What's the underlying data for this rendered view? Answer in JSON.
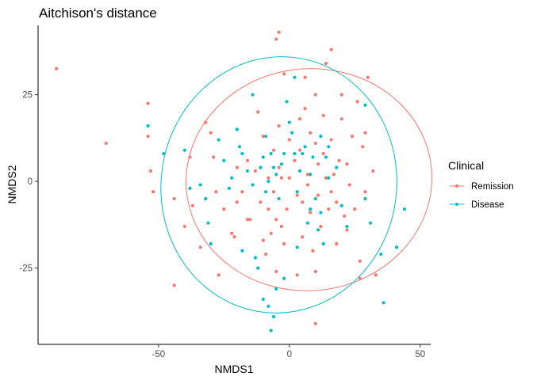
{
  "chart_data": {
    "type": "scatter",
    "title": "Aitchison's distance",
    "xlabel": "NMDS1",
    "ylabel": "NMDS2",
    "xlim": [
      -96,
      54
    ],
    "ylim": [
      -47,
      45
    ],
    "xticks": [
      -50,
      0,
      50
    ],
    "yticks": [
      -25,
      0,
      25
    ],
    "grid": false,
    "legend": {
      "title": "Clinical",
      "position": "right"
    },
    "series": [
      {
        "name": "Remission",
        "color": "#F8766D",
        "ellipse": {
          "center": [
            7.5,
            0.5
          ],
          "rx": 47,
          "ry": 32,
          "angle": 5
        },
        "points": [
          [
            -89,
            32.5
          ],
          [
            -70,
            11
          ],
          [
            -54,
            22.5
          ],
          [
            -54,
            13
          ],
          [
            -53,
            3
          ],
          [
            -52,
            -3
          ],
          [
            -44,
            -5
          ],
          [
            -44,
            -30
          ],
          [
            -40,
            -13
          ],
          [
            -38,
            7
          ],
          [
            -37,
            -7
          ],
          [
            -34,
            -19
          ],
          [
            -32,
            17
          ],
          [
            -30,
            14
          ],
          [
            -29,
            7
          ],
          [
            -28,
            -3
          ],
          [
            -27,
            -27
          ],
          [
            -25,
            -8
          ],
          [
            -22,
            -15
          ],
          [
            -21,
            -16
          ],
          [
            -20,
            -6
          ],
          [
            -18,
            -3
          ],
          [
            -16,
            6
          ],
          [
            -15,
            -11
          ],
          [
            -13,
            3
          ],
          [
            -12,
            20
          ],
          [
            -11,
            -6
          ],
          [
            -10,
            13
          ],
          [
            -10,
            -17
          ],
          [
            -9,
            -21
          ],
          [
            -8,
            1
          ],
          [
            -8,
            -8
          ],
          [
            -7,
            -15
          ],
          [
            -6,
            9
          ],
          [
            -6,
            -3
          ],
          [
            -5,
            -11
          ],
          [
            -5,
            -26
          ],
          [
            -4,
            16
          ],
          [
            -4,
            4
          ],
          [
            -3,
            1
          ],
          [
            -3,
            -13
          ],
          [
            -2,
            -18
          ],
          [
            -2,
            31
          ],
          [
            -1,
            -8
          ],
          [
            0,
            12
          ],
          [
            0,
            1
          ],
          [
            -4,
            43
          ],
          [
            -5,
            41
          ],
          [
            2,
            6
          ],
          [
            3,
            -4
          ],
          [
            3,
            -27
          ],
          [
            4,
            18
          ],
          [
            4,
            9
          ],
          [
            5,
            -6
          ],
          [
            5,
            -16
          ],
          [
            6,
            30
          ],
          [
            6,
            21
          ],
          [
            7,
            2
          ],
          [
            7,
            -1
          ],
          [
            8,
            14
          ],
          [
            8,
            -9
          ],
          [
            9,
            -20
          ],
          [
            10,
            25
          ],
          [
            10,
            11
          ],
          [
            11,
            5
          ],
          [
            11,
            -4
          ],
          [
            12,
            -13
          ],
          [
            13,
            19
          ],
          [
            13,
            8
          ],
          [
            14,
            34
          ],
          [
            14,
            1
          ],
          [
            15,
            -8
          ],
          [
            16,
            -3
          ],
          [
            16,
            12
          ],
          [
            16,
            38
          ],
          [
            17,
            2
          ],
          [
            18,
            -6
          ],
          [
            18,
            -18
          ],
          [
            19,
            6
          ],
          [
            20,
            25
          ],
          [
            20,
            18
          ],
          [
            21,
            -10
          ],
          [
            22,
            -14
          ],
          [
            22,
            5
          ],
          [
            23,
            -1
          ],
          [
            24,
            13
          ],
          [
            25,
            -8
          ],
          [
            26,
            23
          ],
          [
            27,
            -23
          ],
          [
            28,
            10
          ],
          [
            29,
            -3
          ],
          [
            30,
            30
          ],
          [
            32,
            3
          ],
          [
            33,
            -27
          ],
          [
            10,
            -41
          ],
          [
            10,
            -26
          ],
          [
            27,
            -28
          ],
          [
            29,
            14
          ],
          [
            -16,
            -11
          ],
          [
            -20,
            4
          ]
        ]
      },
      {
        "name": "Disease",
        "color": "#00BFC4",
        "ellipse": {
          "center": [
            -4,
            -1
          ],
          "rx": 45,
          "ry": 37,
          "angle": -8
        },
        "points": [
          [
            -54,
            16
          ],
          [
            -48,
            8
          ],
          [
            -40,
            9
          ],
          [
            -38,
            -2
          ],
          [
            -34,
            -1
          ],
          [
            -32,
            -5
          ],
          [
            -31,
            -12
          ],
          [
            -30,
            -18
          ],
          [
            -27,
            12
          ],
          [
            -25,
            6
          ],
          [
            -22,
            1
          ],
          [
            -20,
            15
          ],
          [
            -18,
            8
          ],
          [
            -16,
            3
          ],
          [
            -14,
            -1
          ],
          [
            -14,
            25
          ],
          [
            -13,
            -22
          ],
          [
            -11,
            4
          ],
          [
            -10,
            7
          ],
          [
            -9,
            -3
          ],
          [
            -9,
            13
          ],
          [
            -8,
            0
          ],
          [
            -7,
            8
          ],
          [
            -6,
            4
          ],
          [
            -5,
            2
          ],
          [
            -4,
            -5
          ],
          [
            -3,
            5
          ],
          [
            -2,
            8
          ],
          [
            -1,
            23
          ],
          [
            0,
            17
          ],
          [
            1,
            14
          ],
          [
            2,
            30
          ],
          [
            2,
            8
          ],
          [
            3,
            -3
          ],
          [
            4,
            3
          ],
          [
            5,
            8
          ],
          [
            6,
            10
          ],
          [
            7,
            -12
          ],
          [
            8,
            2
          ],
          [
            9,
            7
          ],
          [
            10,
            -5
          ],
          [
            11,
            -14
          ],
          [
            12,
            13
          ],
          [
            13,
            -18
          ],
          [
            14,
            7
          ],
          [
            15,
            10
          ],
          [
            18,
            4
          ],
          [
            20,
            -7
          ],
          [
            22,
            -13
          ],
          [
            29,
            22
          ],
          [
            29,
            -5
          ],
          [
            31,
            -12
          ],
          [
            35,
            -21
          ],
          [
            36,
            -35
          ],
          [
            41,
            -19
          ],
          [
            44,
            -8
          ],
          [
            -12,
            -25
          ],
          [
            -10,
            -34
          ],
          [
            -8,
            -36
          ],
          [
            -6,
            -39
          ],
          [
            -7,
            -43
          ],
          [
            -5,
            -31
          ],
          [
            -2,
            -28
          ],
          [
            -18,
            -20
          ],
          [
            3,
            -19
          ],
          [
            8,
            -8
          ],
          [
            12,
            -9
          ],
          [
            -23,
            -2
          ],
          [
            -19,
            10
          ],
          [
            15,
            1
          ]
        ]
      }
    ]
  }
}
